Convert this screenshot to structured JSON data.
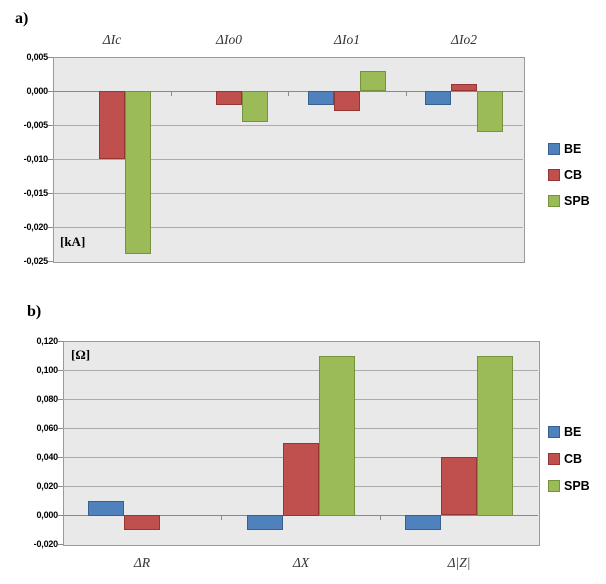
{
  "colors": {
    "plot_background": "#E9E9E9",
    "gridline": "#ABABAB",
    "axis_line": "#8A8A8A",
    "series_be": "#4F81BD",
    "series_cb": "#C0504D",
    "series_spb": "#9BBB59"
  },
  "chart_data": [
    {
      "type": "bar",
      "panel_label": "a)",
      "unit_label": "[kA]",
      "unit_label_position": "bottom-left",
      "categories": [
        "ΔIc",
        "ΔIo0",
        "ΔIo1",
        "ΔIo2"
      ],
      "category_label_position": "top",
      "series": [
        {
          "name": "BE",
          "color": "#4F81BD",
          "border_color": "#38608F",
          "values": [
            0,
            0,
            -0.002,
            -0.002
          ]
        },
        {
          "name": "CB",
          "color": "#C0504D",
          "border_color": "#943634",
          "values": [
            -0.01,
            -0.002,
            -0.003,
            0.001
          ]
        },
        {
          "name": "SPB",
          "color": "#9BBB59",
          "border_color": "#76923C",
          "values": [
            -0.024,
            -0.0045,
            0.003,
            -0.006
          ]
        }
      ],
      "ylim": [
        -0.025,
        0.005
      ],
      "ystep": 0.005,
      "tick_decimals": 3,
      "decimal_separator": ",",
      "grid": true,
      "legend_position": "right",
      "legend_entries": [
        "BE",
        "CB",
        "SPB"
      ]
    },
    {
      "type": "bar",
      "panel_label": "b)",
      "unit_label": "[Ω]",
      "unit_label_position": "top-left",
      "categories": [
        "ΔR",
        "ΔX",
        "Δ|Z|"
      ],
      "category_label_position": "bottom",
      "series": [
        {
          "name": "BE",
          "color": "#4F81BD",
          "border_color": "#38608F",
          "values": [
            0.01,
            -0.01,
            -0.01
          ]
        },
        {
          "name": "CB",
          "color": "#C0504D",
          "border_color": "#943634",
          "values": [
            -0.01,
            0.05,
            0.04
          ]
        },
        {
          "name": "SPB",
          "color": "#9BBB59",
          "border_color": "#76923C",
          "values": [
            0,
            0.11,
            0.11
          ]
        }
      ],
      "ylim": [
        -0.02,
        0.12
      ],
      "ystep": 0.02,
      "tick_decimals": 3,
      "decimal_separator": ",",
      "grid": true,
      "legend_position": "right",
      "legend_entries": [
        "BE",
        "CB",
        "SPB"
      ]
    }
  ]
}
